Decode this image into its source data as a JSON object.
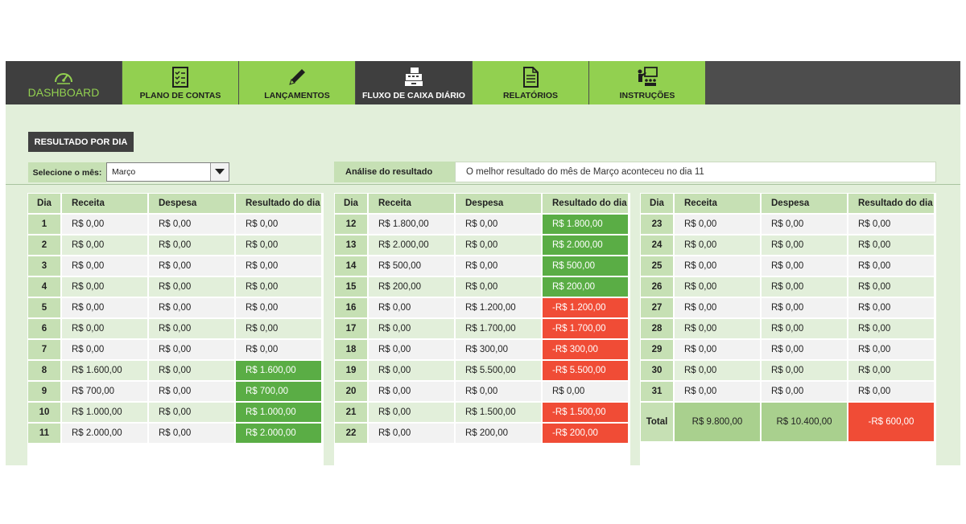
{
  "nav": [
    {
      "label": "DASHBOARD",
      "icon": "speedometer-icon"
    },
    {
      "label": "PLANO DE CONTAS",
      "icon": "checklist-icon"
    },
    {
      "label": "LANÇAMENTOS",
      "icon": "pencil-icon"
    },
    {
      "label": "FLUXO DE CAIXA DIÁRIO",
      "icon": "cash-register-icon"
    },
    {
      "label": "RELATÓRIOS",
      "icon": "document-icon"
    },
    {
      "label": "INSTRUÇÕES",
      "icon": "presentation-icon"
    }
  ],
  "resultado_button": "RESULTADO POR DIA",
  "month_selector": {
    "label": "Selecione o mês:",
    "value": "Março"
  },
  "analise": {
    "label": "Análise do resultado",
    "text": "O melhor resultado do mês de Março aconteceu no dia 11"
  },
  "headers": [
    "Dia",
    "Receita",
    "Despesa",
    "Resultado do dia"
  ],
  "colors": {
    "positive": "#5aad45",
    "negative": "#f04c36",
    "header": "#c6e0b4",
    "nav_green": "#92d050"
  },
  "tables": [
    [
      {
        "dia": "1",
        "receita": "R$ 0,00",
        "despesa": "R$ 0,00",
        "resultado": "R$ 0,00",
        "status": "zero"
      },
      {
        "dia": "2",
        "receita": "R$ 0,00",
        "despesa": "R$ 0,00",
        "resultado": "R$ 0,00",
        "status": "zero"
      },
      {
        "dia": "3",
        "receita": "R$ 0,00",
        "despesa": "R$ 0,00",
        "resultado": "R$ 0,00",
        "status": "zero"
      },
      {
        "dia": "4",
        "receita": "R$ 0,00",
        "despesa": "R$ 0,00",
        "resultado": "R$ 0,00",
        "status": "zero"
      },
      {
        "dia": "5",
        "receita": "R$ 0,00",
        "despesa": "R$ 0,00",
        "resultado": "R$ 0,00",
        "status": "zero"
      },
      {
        "dia": "6",
        "receita": "R$ 0,00",
        "despesa": "R$ 0,00",
        "resultado": "R$ 0,00",
        "status": "zero"
      },
      {
        "dia": "7",
        "receita": "R$ 0,00",
        "despesa": "R$ 0,00",
        "resultado": "R$ 0,00",
        "status": "zero"
      },
      {
        "dia": "8",
        "receita": "R$ 1.600,00",
        "despesa": "R$ 0,00",
        "resultado": "R$ 1.600,00",
        "status": "pos"
      },
      {
        "dia": "9",
        "receita": "R$ 700,00",
        "despesa": "R$ 0,00",
        "resultado": "R$ 700,00",
        "status": "pos"
      },
      {
        "dia": "10",
        "receita": "R$ 1.000,00",
        "despesa": "R$ 0,00",
        "resultado": "R$ 1.000,00",
        "status": "pos"
      },
      {
        "dia": "11",
        "receita": "R$ 2.000,00",
        "despesa": "R$ 0,00",
        "resultado": "R$ 2.000,00",
        "status": "pos"
      }
    ],
    [
      {
        "dia": "12",
        "receita": "R$ 1.800,00",
        "despesa": "R$ 0,00",
        "resultado": "R$ 1.800,00",
        "status": "pos"
      },
      {
        "dia": "13",
        "receita": "R$ 2.000,00",
        "despesa": "R$ 0,00",
        "resultado": "R$ 2.000,00",
        "status": "pos"
      },
      {
        "dia": "14",
        "receita": "R$ 500,00",
        "despesa": "R$ 0,00",
        "resultado": "R$ 500,00",
        "status": "pos"
      },
      {
        "dia": "15",
        "receita": "R$ 200,00",
        "despesa": "R$ 0,00",
        "resultado": "R$ 200,00",
        "status": "pos"
      },
      {
        "dia": "16",
        "receita": "R$ 0,00",
        "despesa": "R$ 1.200,00",
        "resultado": "-R$ 1.200,00",
        "status": "neg"
      },
      {
        "dia": "17",
        "receita": "R$ 0,00",
        "despesa": "R$ 1.700,00",
        "resultado": "-R$ 1.700,00",
        "status": "neg"
      },
      {
        "dia": "18",
        "receita": "R$ 0,00",
        "despesa": "R$ 300,00",
        "resultado": "-R$ 300,00",
        "status": "neg"
      },
      {
        "dia": "19",
        "receita": "R$ 0,00",
        "despesa": "R$ 5.500,00",
        "resultado": "-R$ 5.500,00",
        "status": "neg"
      },
      {
        "dia": "20",
        "receita": "R$ 0,00",
        "despesa": "R$ 0,00",
        "resultado": "R$ 0,00",
        "status": "zero"
      },
      {
        "dia": "21",
        "receita": "R$ 0,00",
        "despesa": "R$ 1.500,00",
        "resultado": "-R$ 1.500,00",
        "status": "neg"
      },
      {
        "dia": "22",
        "receita": "R$ 0,00",
        "despesa": "R$ 200,00",
        "resultado": "-R$ 200,00",
        "status": "neg"
      }
    ],
    [
      {
        "dia": "23",
        "receita": "R$ 0,00",
        "despesa": "R$ 0,00",
        "resultado": "R$ 0,00",
        "status": "zero"
      },
      {
        "dia": "24",
        "receita": "R$ 0,00",
        "despesa": "R$ 0,00",
        "resultado": "R$ 0,00",
        "status": "zero"
      },
      {
        "dia": "25",
        "receita": "R$ 0,00",
        "despesa": "R$ 0,00",
        "resultado": "R$ 0,00",
        "status": "zero"
      },
      {
        "dia": "26",
        "receita": "R$ 0,00",
        "despesa": "R$ 0,00",
        "resultado": "R$ 0,00",
        "status": "zero"
      },
      {
        "dia": "27",
        "receita": "R$ 0,00",
        "despesa": "R$ 0,00",
        "resultado": "R$ 0,00",
        "status": "zero"
      },
      {
        "dia": "28",
        "receita": "R$ 0,00",
        "despesa": "R$ 0,00",
        "resultado": "R$ 0,00",
        "status": "zero"
      },
      {
        "dia": "29",
        "receita": "R$ 0,00",
        "despesa": "R$ 0,00",
        "resultado": "R$ 0,00",
        "status": "zero"
      },
      {
        "dia": "30",
        "receita": "R$ 0,00",
        "despesa": "R$ 0,00",
        "resultado": "R$ 0,00",
        "status": "zero"
      },
      {
        "dia": "31",
        "receita": "R$ 0,00",
        "despesa": "R$ 0,00",
        "resultado": "R$ 0,00",
        "status": "zero"
      }
    ]
  ],
  "total": {
    "label": "Total",
    "receita": "R$ 9.800,00",
    "despesa": "R$ 10.400,00",
    "resultado": "-R$ 600,00",
    "status": "neg"
  }
}
